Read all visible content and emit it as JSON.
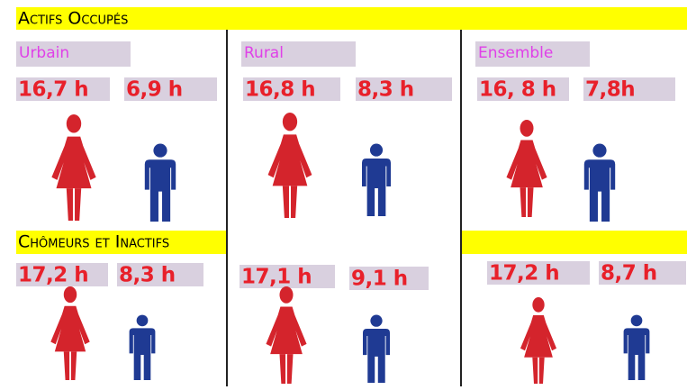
{
  "sections": [
    {
      "title": "Actifs Occupés",
      "columns": [
        {
          "label": "Urbain",
          "female": "16,7 h",
          "male": "6,9 h"
        },
        {
          "label": "Rural",
          "female": "16,8 h",
          "male": "8,3 h"
        },
        {
          "label": "Ensemble",
          "female": "16, 8 h",
          "male": "7,8h"
        }
      ]
    },
    {
      "title": "Chômeurs et Inactifs",
      "columns": [
        {
          "female": "17,2 h",
          "male": "8,3 h"
        },
        {
          "female": "17,1 h",
          "male": "9,1 h"
        },
        {
          "female": "17,2 h",
          "male": "8,7 h"
        }
      ]
    }
  ]
}
